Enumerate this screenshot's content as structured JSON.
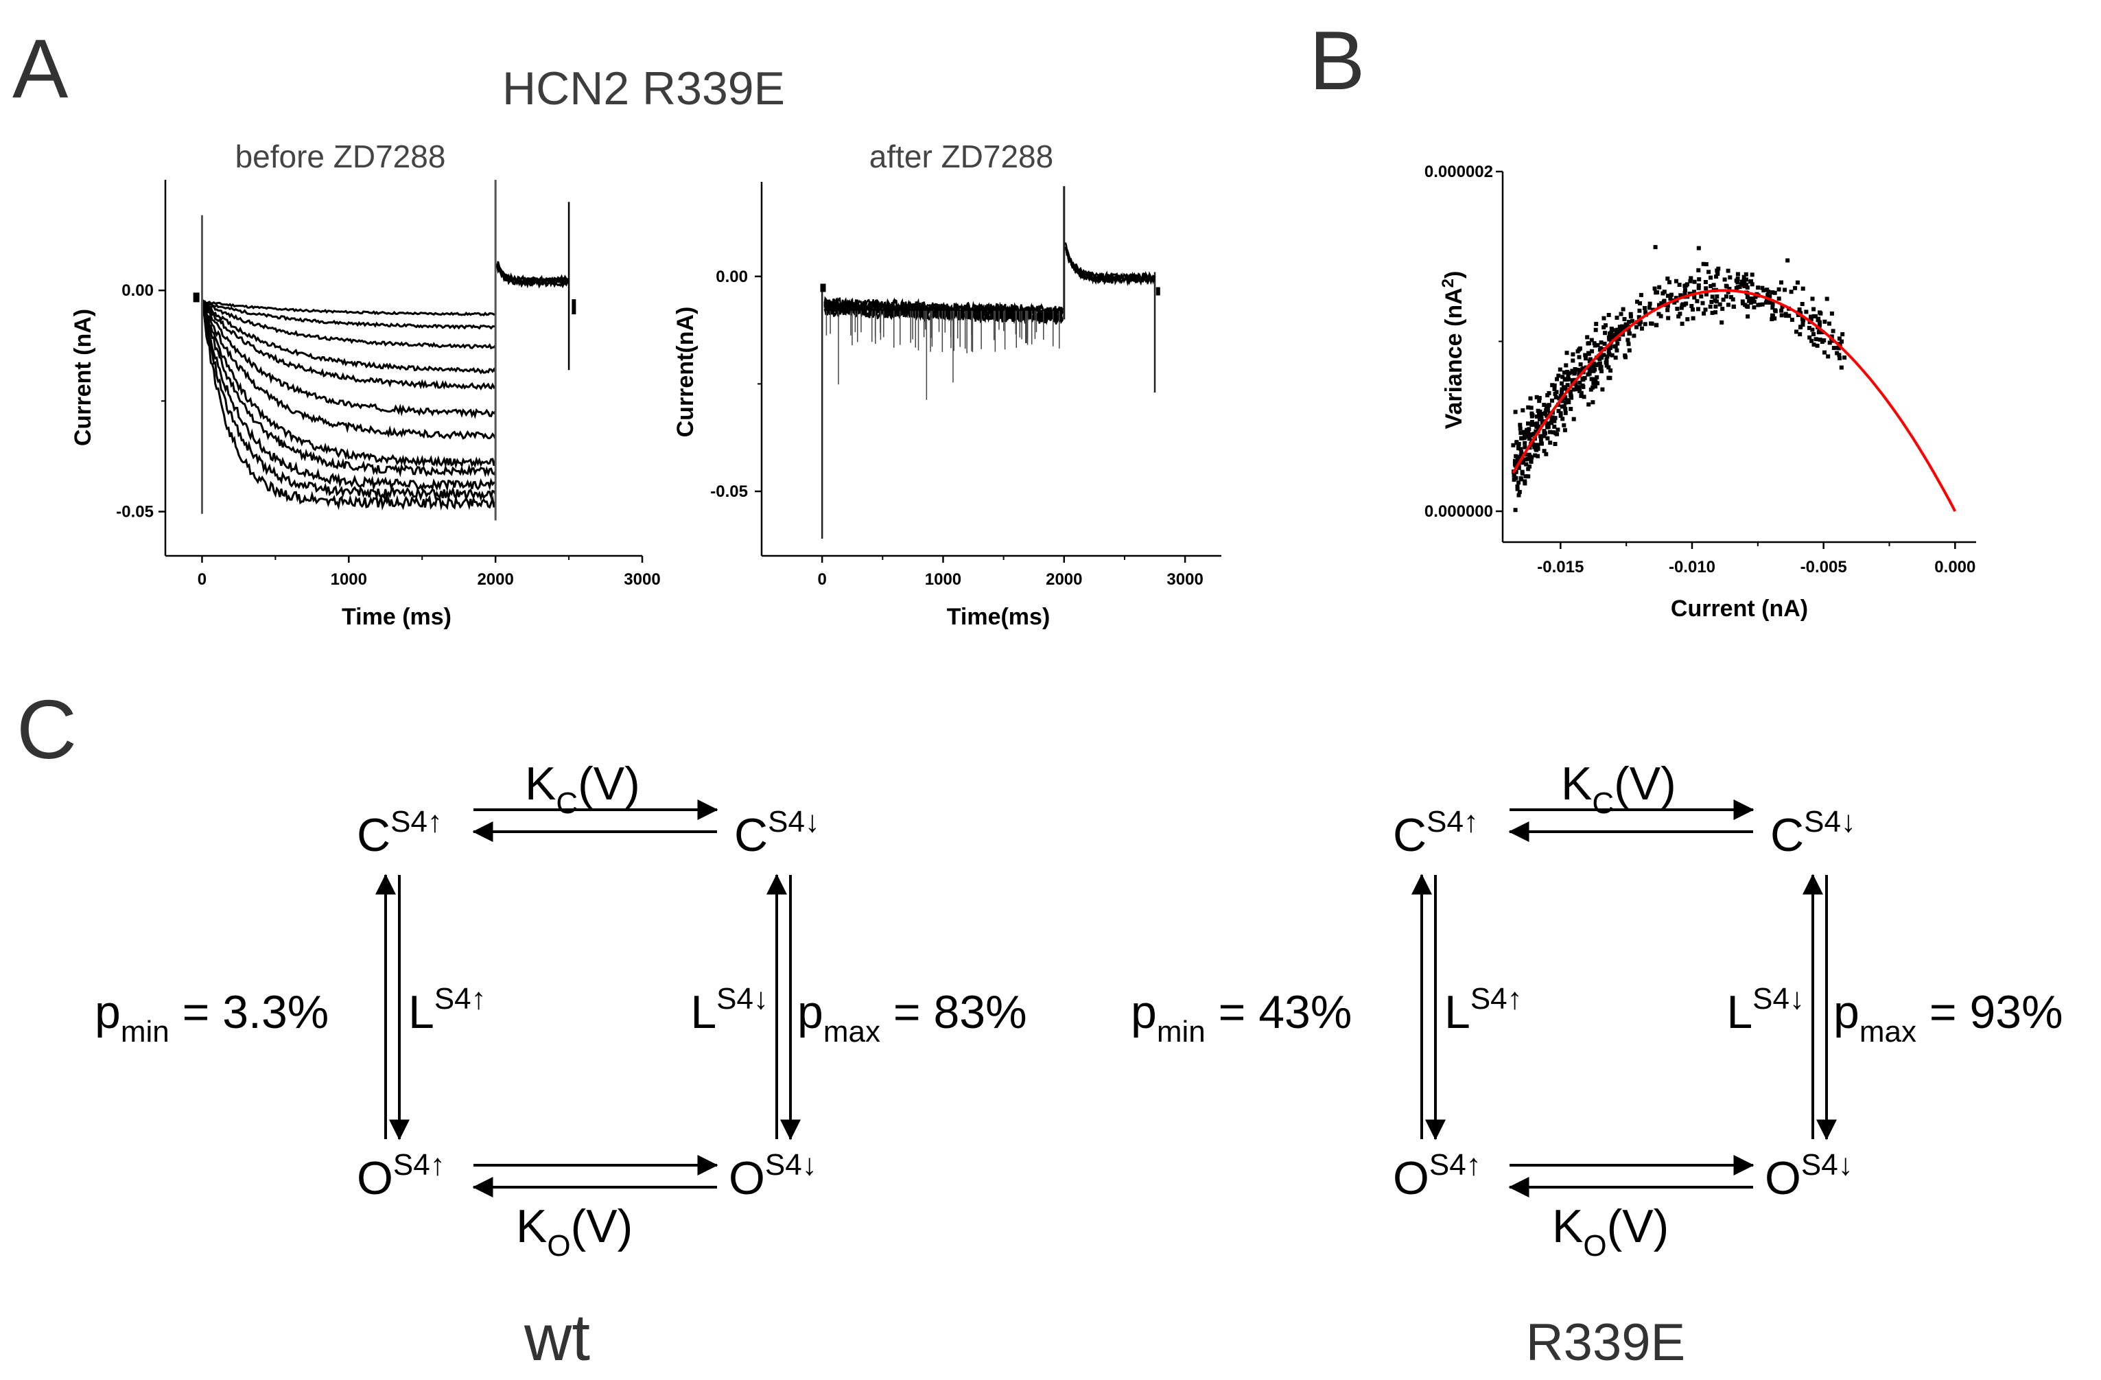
{
  "panels": {
    "A": "A",
    "B": "B",
    "C": "C"
  },
  "panelA": {
    "title": "HCN2 R339E",
    "left_subtitle": "before ZD7288",
    "right_subtitle": "after ZD7288"
  },
  "chart_data": [
    {
      "type": "line",
      "title": "before ZD7288",
      "xlabel": "Time (ms)",
      "ylabel": "Current (nA)",
      "xlim": [
        -250,
        3000
      ],
      "ylim": [
        -0.06,
        0.025
      ],
      "x_ticks": [
        "0",
        "1000",
        "2000",
        "3000"
      ],
      "y_ticks": [
        "0.00",
        "-0.05"
      ],
      "step_ms": [
        0,
        2000
      ],
      "tail_ms": [
        2000,
        2500
      ],
      "steady_state_nA": [
        -0.0055,
        -0.0085,
        -0.013,
        -0.0185,
        -0.022,
        -0.028,
        -0.033,
        -0.039,
        -0.041,
        -0.044,
        -0.046,
        -0.048
      ],
      "grid": false
    },
    {
      "type": "line",
      "title": "after ZD7288",
      "xlabel": "Time(ms)",
      "ylabel": "Current(nA)",
      "xlim": [
        -500,
        3300
      ],
      "ylim": [
        -0.065,
        0.022
      ],
      "x_ticks": [
        "0",
        "1000",
        "2000",
        "3000"
      ],
      "y_ticks": [
        "0.00",
        "-0.05"
      ],
      "level_nA": [
        -0.006,
        -0.009
      ],
      "tail_level_nA": 0.0,
      "grid": false
    },
    {
      "type": "scatter",
      "xlabel": "Current (nA)",
      "ylabel": "Variance (nA2)",
      "ylabel_main": "Variance (nA",
      "ylabel_sup": "2",
      "ylabel_end": ")",
      "xlim": [
        -0.0172,
        0.0008
      ],
      "ylim": [
        0.0,
        2e-06
      ],
      "x_ticks": [
        "-0.015",
        "-0.010",
        "-0.005",
        "0.000"
      ],
      "y_ticks": [
        "0.000002",
        "0.000000"
      ],
      "point_range_nA": [
        -0.0168,
        -0.0042
      ],
      "fit": {
        "type": "parabola",
        "vertex_x": -0.0088,
        "vertex_y": 1.3e-06,
        "zero_x": 0.0,
        "color": "#ff0000"
      },
      "marker_color": "#000000",
      "grid": false
    }
  ],
  "schemes": [
    {
      "caption": "wt",
      "C_up": "C",
      "C_up_sup": "S4↑",
      "C_down": "C",
      "C_down_sup": "S4↓",
      "O_up": "O",
      "O_up_sup": "S4↑",
      "O_down": "O",
      "O_down_sup": "S4↓",
      "kc": "K",
      "kc_sub": "C",
      "kc_arg": "(V)",
      "ko": "K",
      "ko_sub": "O",
      "ko_arg": "(V)",
      "l_up": "L",
      "l_up_sup": "S4↑",
      "l_down": "L",
      "l_down_sup": "S4↓",
      "pmin": "p",
      "pmin_sub": "min",
      "pmin_val": " = 3.3%",
      "pmax": "p",
      "pmax_sub": "max",
      "pmax_val": " = 83%"
    },
    {
      "caption": "R339E",
      "C_up": "C",
      "C_up_sup": "S4↑",
      "C_down": "C",
      "C_down_sup": "S4↓",
      "O_up": "O",
      "O_up_sup": "S4↑",
      "O_down": "O",
      "O_down_sup": "S4↓",
      "kc": "K",
      "kc_sub": "C",
      "kc_arg": "(V)",
      "ko": "K",
      "ko_sub": "O",
      "ko_arg": "(V)",
      "l_up": "L",
      "l_up_sup": "S4↑",
      "l_down": "L",
      "l_down_sup": "S4↓",
      "pmin": "p",
      "pmin_sub": "min",
      "pmin_val": " = 43%",
      "pmax": "p",
      "pmax_sub": "max",
      "pmax_val": " = 93%"
    }
  ]
}
